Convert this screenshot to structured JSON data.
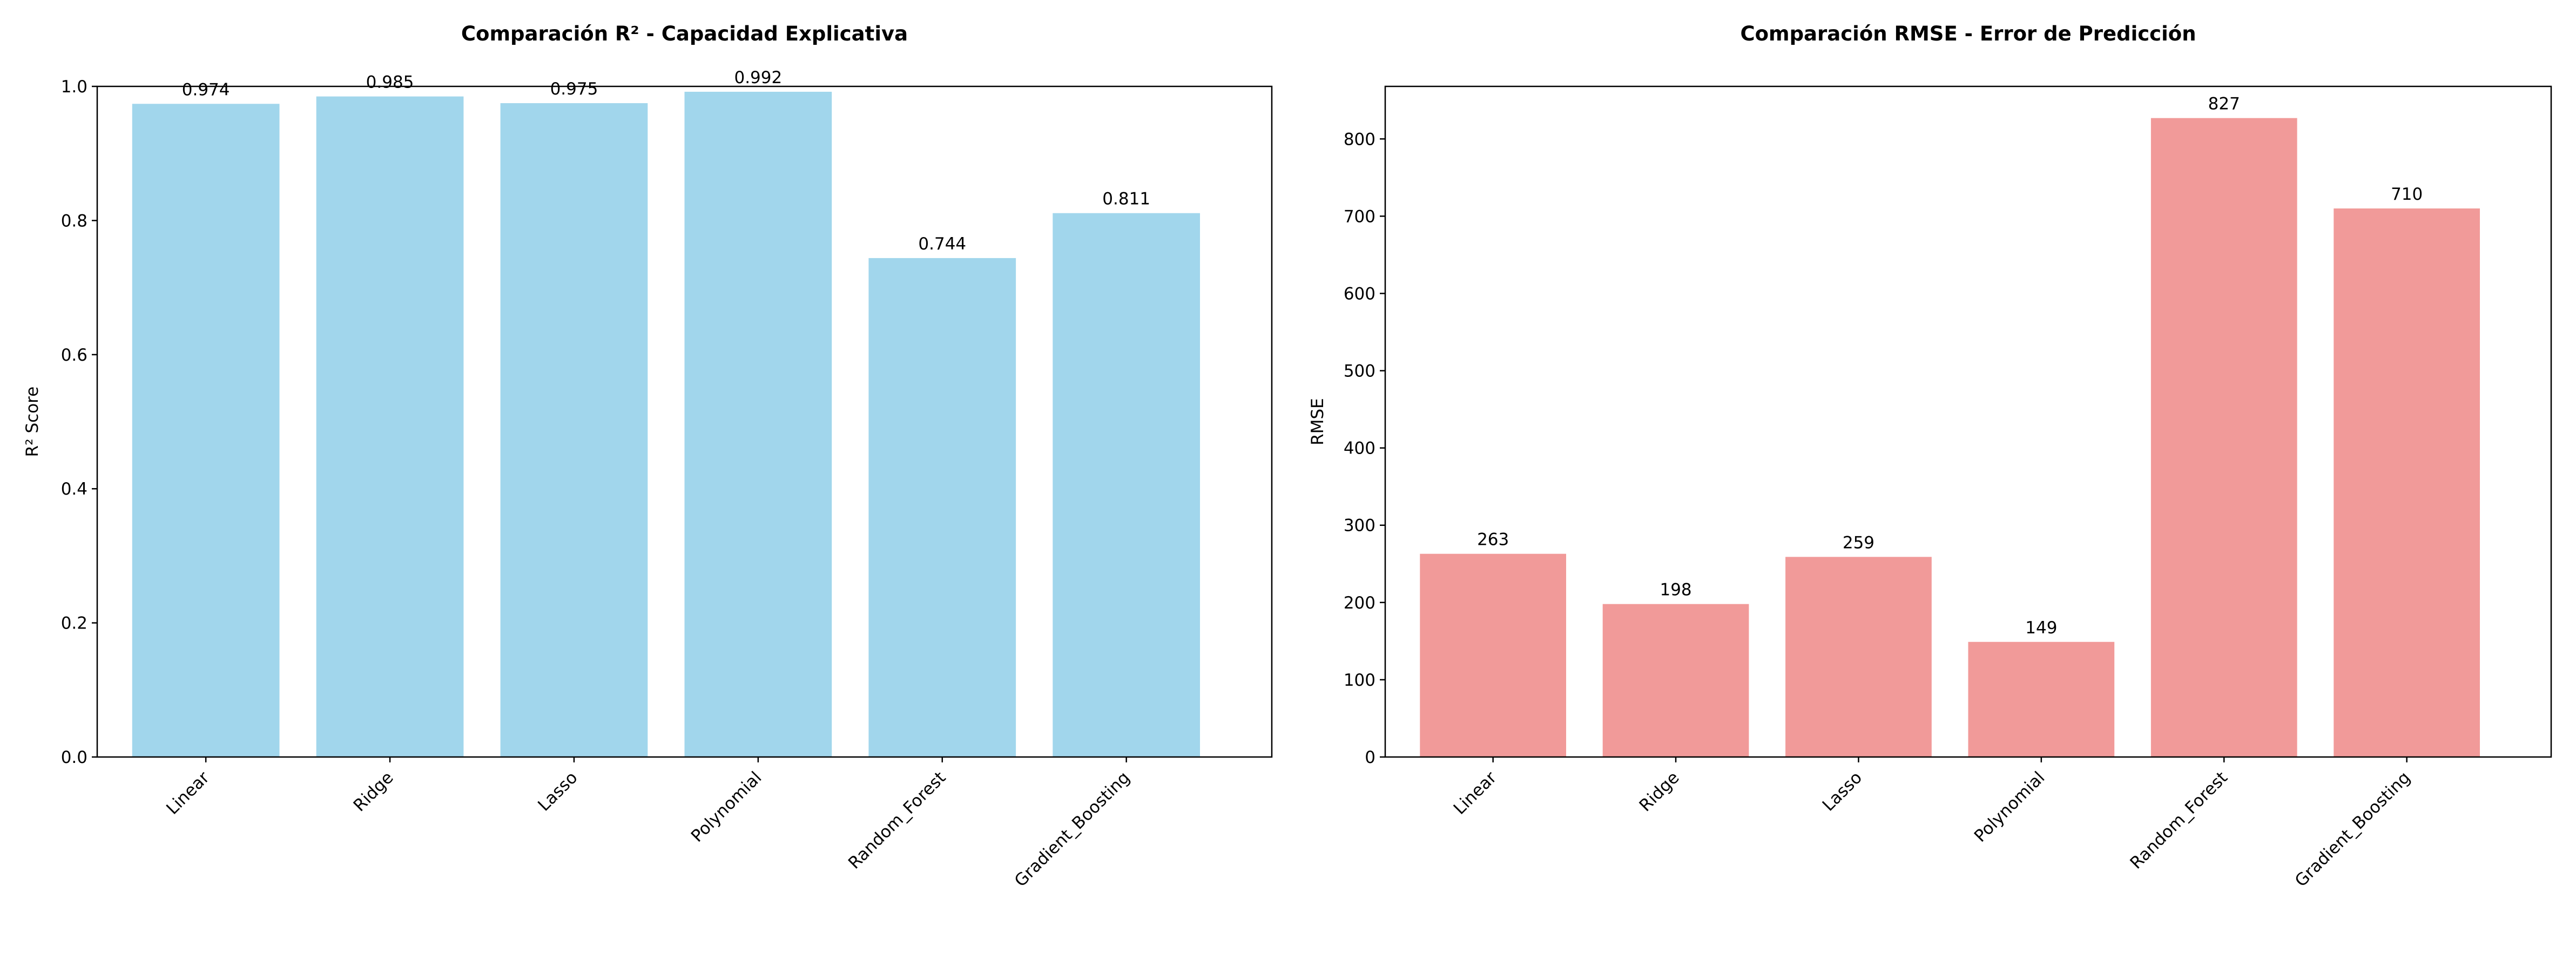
{
  "chart_data": [
    {
      "type": "bar",
      "title": "Comparación R² - Capacidad Explicativa",
      "xlabel": "",
      "ylabel": "R² Score",
      "categories": [
        "Linear",
        "Ridge",
        "Lasso",
        "Polynomial",
        "Random_Forest",
        "Gradient_Boosting"
      ],
      "values": [
        0.974,
        0.985,
        0.975,
        0.992,
        0.744,
        0.811
      ],
      "value_labels": [
        "0.974",
        "0.985",
        "0.975",
        "0.992",
        "0.744",
        "0.811"
      ],
      "ylim": [
        0,
        1.0
      ],
      "yticks": [
        0.0,
        0.2,
        0.4,
        0.6,
        0.8,
        1.0
      ],
      "ytick_labels": [
        "0.0",
        "0.2",
        "0.4",
        "0.6",
        "0.8",
        "1.0"
      ],
      "color": "#a1d6ec",
      "grid": false
    },
    {
      "type": "bar",
      "title": "Comparación RMSE - Error de Predicción",
      "xlabel": "",
      "ylabel": "RMSE",
      "categories": [
        "Linear",
        "Ridge",
        "Lasso",
        "Polynomial",
        "Random_Forest",
        "Gradient_Boosting"
      ],
      "values": [
        263,
        198,
        259,
        149,
        827,
        710
      ],
      "value_labels": [
        "263",
        "198",
        "259",
        "149",
        "827",
        "710"
      ],
      "ylim": [
        0,
        868
      ],
      "yticks": [
        0,
        100,
        200,
        300,
        400,
        500,
        600,
        700,
        800
      ],
      "ytick_labels": [
        "0",
        "100",
        "200",
        "300",
        "400",
        "500",
        "600",
        "700",
        "800"
      ],
      "color": "#f19a99",
      "grid": false
    }
  ]
}
